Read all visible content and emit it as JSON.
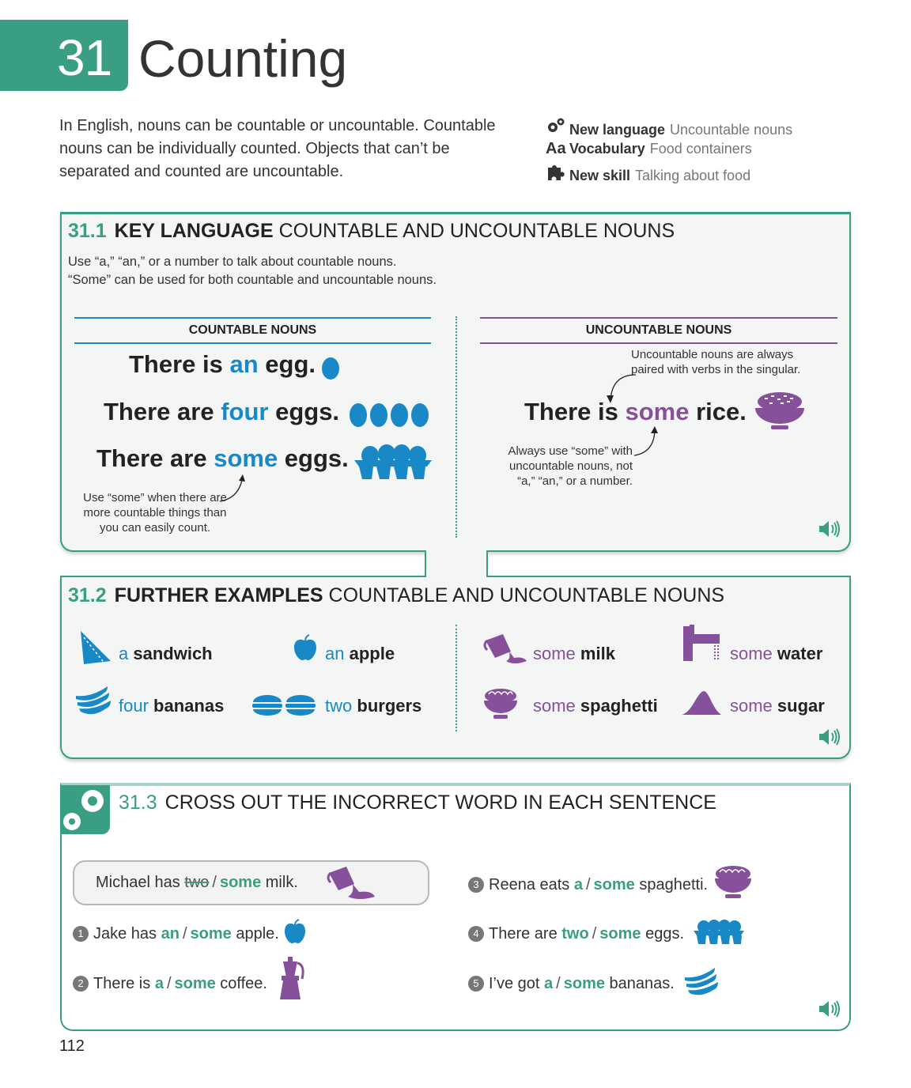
{
  "header": {
    "unit_number": "31",
    "title": "Counting",
    "intro": "In English, nouns can be countable or uncountable. Countable nouns can be individually counted. Objects that can’t be separated and counted are uncountable.",
    "meta": [
      {
        "icon": "gears-icon",
        "label": "New language",
        "value": "Uncountable nouns"
      },
      {
        "icon": "aa-icon",
        "label": "Vocabulary",
        "value": "Food containers"
      },
      {
        "icon": "puzzle-icon",
        "label": "New skill",
        "value": "Talking about food"
      }
    ]
  },
  "s1": {
    "num": "31.1",
    "keyword": "KEY LANGUAGE",
    "rest": "COUNTABLE AND UNCOUNTABLE NOUNS",
    "desc1": "Use “a,” “an,” or a number to talk about countable nouns.",
    "desc2": "“Some” can be used for both countable and uncountable nouns.",
    "countable_head": "COUNTABLE NOUNS",
    "uncountable_head": "UNCOUNTABLE NOUNS",
    "c1": {
      "a": "There is ",
      "b": "an",
      "c": " egg."
    },
    "c2": {
      "a": "There are ",
      "b": "four",
      "c": " eggs."
    },
    "c3": {
      "a": "There are ",
      "b": "some",
      "c": " eggs."
    },
    "note_some": "Use “some” when there are more countable things than you can easily count.",
    "u1": {
      "a": "There is ",
      "b": "some",
      "c": " rice."
    },
    "note_singular": "Uncountable nouns are always paired with verbs in the singular.",
    "note_always": "Always use “some” with uncountable nouns, not “a,” “an,” or a number."
  },
  "s2": {
    "num": "31.2",
    "keyword": "FURTHER EXAMPLES",
    "rest": "COUNTABLE AND UNCOUNTABLE NOUNS",
    "items": [
      {
        "q": "a",
        "n": "sandwich"
      },
      {
        "q": "an",
        "n": "apple"
      },
      {
        "q": "four",
        "n": "bananas"
      },
      {
        "q": "two",
        "n": "burgers"
      },
      {
        "q": "some",
        "n": "milk"
      },
      {
        "q": "some",
        "n": "water"
      },
      {
        "q": "some",
        "n": "spaghetti"
      },
      {
        "q": "some",
        "n": "sugar"
      }
    ]
  },
  "s3": {
    "num": "31.3",
    "title": "CROSS OUT THE INCORRECT WORD IN EACH SENTENCE",
    "example": {
      "pre": "Michael has ",
      "crossed": "two",
      "slash": "/",
      "opt": "some",
      "post": " milk."
    },
    "questions": [
      {
        "n": "1",
        "pre": "Jake has ",
        "o1": "an",
        "o2": "some",
        "post": " apple."
      },
      {
        "n": "2",
        "pre": "There is ",
        "o1": "a",
        "o2": "some",
        "post": " coffee."
      },
      {
        "n": "3",
        "pre": "Reena eats ",
        "o1": "a",
        "o2": "some",
        "post": " spaghetti."
      },
      {
        "n": "4",
        "pre": "There are ",
        "o1": "two",
        "o2": "some",
        "post": " eggs."
      },
      {
        "n": "5",
        "pre": "I’ve got ",
        "o1": "a",
        "o2": "some",
        "post": " bananas."
      }
    ]
  },
  "page_number": "112",
  "colors": {
    "green": "#3a9e84",
    "blue": "#1888c6",
    "purple": "#87509a"
  }
}
